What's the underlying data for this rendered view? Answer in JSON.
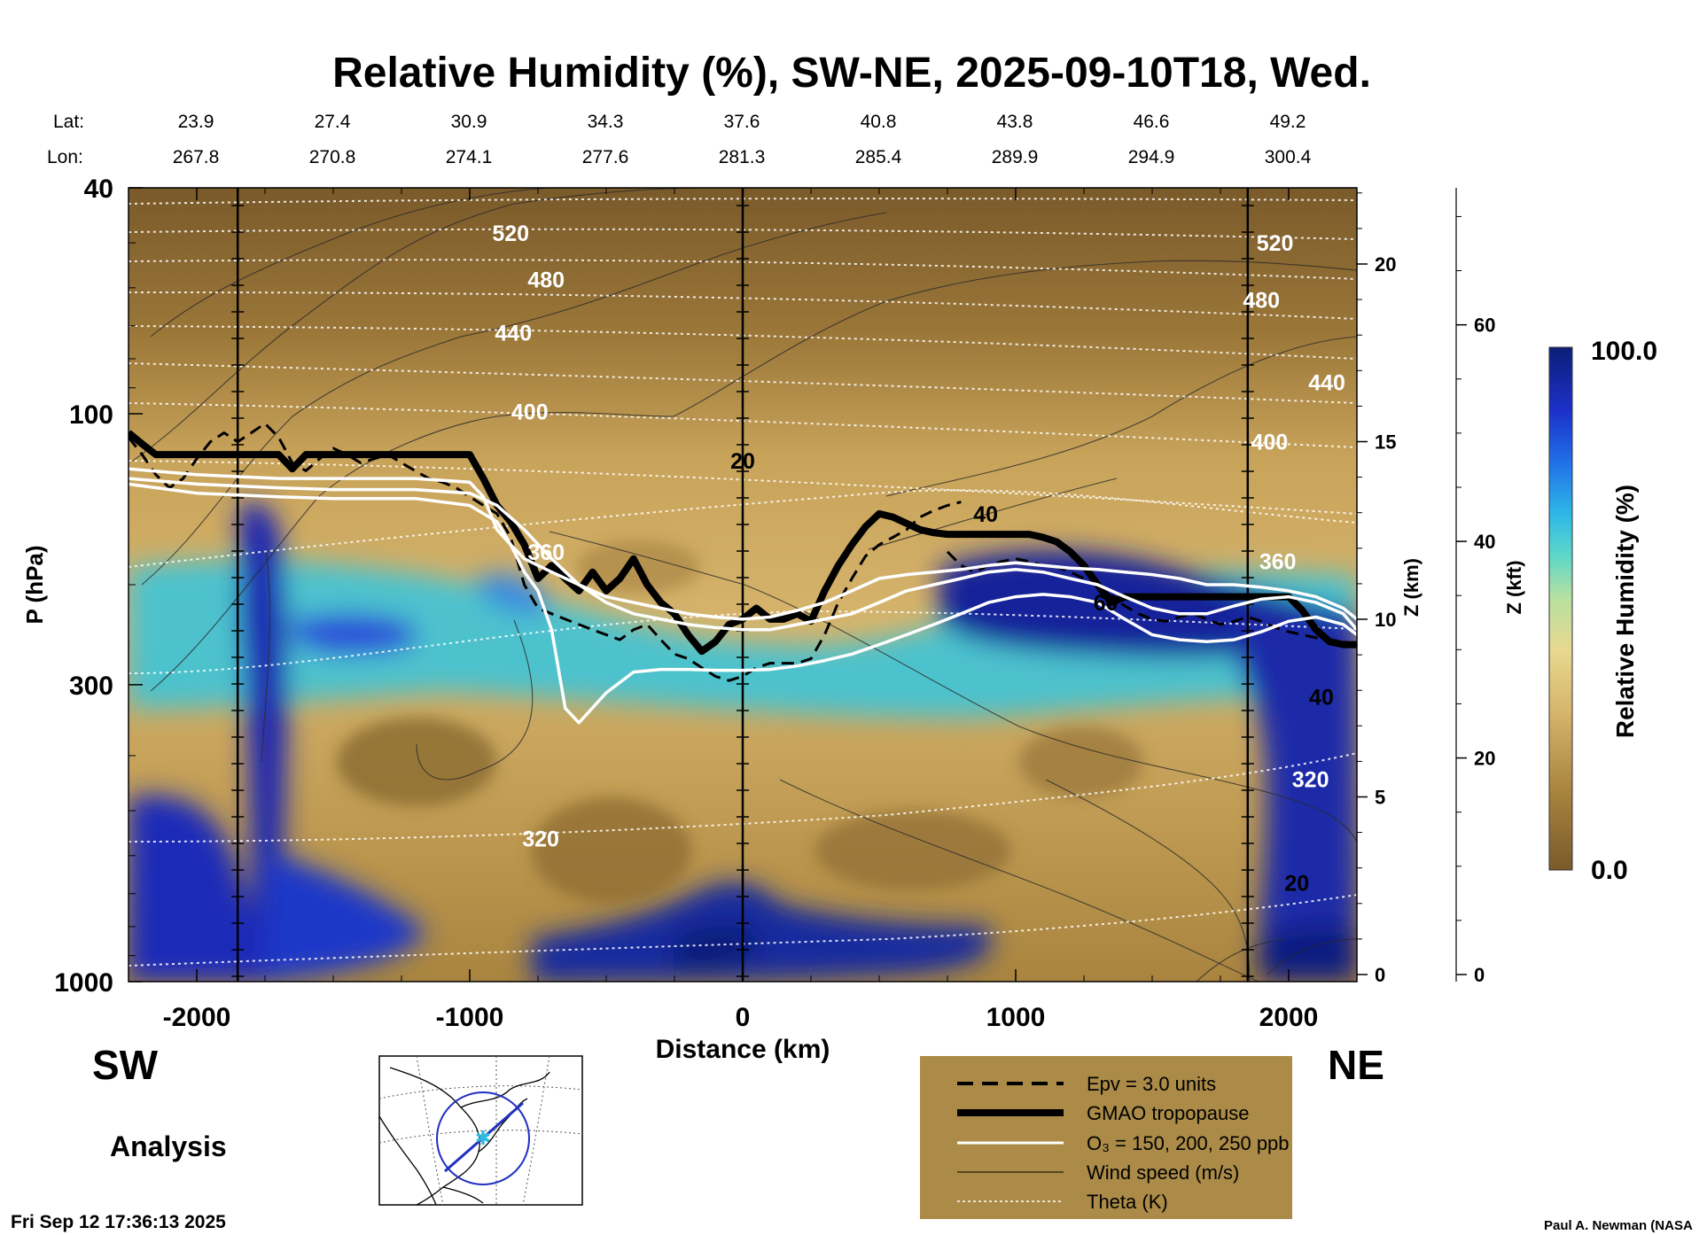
{
  "chart_data": {
    "type": "heatmap",
    "title": "Relative Humidity (%), SW-NE, 2025-09-10T18, Wed.",
    "xlabel": "Distance (km)",
    "ylabel": "P (hPa)",
    "xlim": [
      -2250,
      2250
    ],
    "ylim_hpa": [
      1000,
      40
    ],
    "x_ticks": [
      "-2000",
      "-1000",
      "0",
      "1000",
      "2000"
    ],
    "x_tick_values": [
      -2000,
      -1000,
      0,
      1000,
      2000
    ],
    "y_ticks": [
      "40",
      "100",
      "300",
      "1000"
    ],
    "y_tick_values": [
      40,
      100,
      300,
      1000
    ],
    "z_km_label": "Z (km)",
    "z_km_ticks": [
      "0",
      "5",
      "10",
      "15",
      "20"
    ],
    "z_km_values": [
      0,
      5,
      10,
      15,
      20
    ],
    "z_kft_label": "Z (kft)",
    "z_kft_ticks": [
      "0",
      "20",
      "40",
      "60"
    ],
    "z_kft_values": [
      0,
      20,
      40,
      60
    ],
    "lat_label": "Lat:",
    "lon_label": "Lon:",
    "lat_values": [
      "23.9",
      "27.4",
      "30.9",
      "34.3",
      "37.6",
      "40.8",
      "43.8",
      "46.6",
      "49.2"
    ],
    "lon_values": [
      "267.8",
      "270.8",
      "274.1",
      "277.6",
      "281.3",
      "285.4",
      "289.9",
      "294.9",
      "300.4"
    ],
    "lat_lon_distance_km": [
      -2000,
      -1500,
      -1000,
      -500,
      0,
      500,
      1000,
      1500,
      2000
    ],
    "vertical_line_distances_km": [
      -1850,
      0,
      1850
    ],
    "colorbar": {
      "label": "Relative Humidity (%)",
      "min_label": "0.0",
      "max_label": "100.0",
      "min": 0,
      "max": 100
    },
    "theta_labels": [
      {
        "text": "520",
        "x_km": -850,
        "p_hpa": 48
      },
      {
        "text": "480",
        "x_km": -720,
        "p_hpa": 58
      },
      {
        "text": "440",
        "x_km": -840,
        "p_hpa": 72
      },
      {
        "text": "400",
        "x_km": -780,
        "p_hpa": 99
      },
      {
        "text": "360",
        "x_km": -720,
        "p_hpa": 175
      },
      {
        "text": "320",
        "x_km": -740,
        "p_hpa": 560
      },
      {
        "text": "520",
        "x_km": 1950,
        "p_hpa": 50
      },
      {
        "text": "480",
        "x_km": 1900,
        "p_hpa": 63
      },
      {
        "text": "440",
        "x_km": 2140,
        "p_hpa": 88
      },
      {
        "text": "400",
        "x_km": 1930,
        "p_hpa": 112
      },
      {
        "text": "360",
        "x_km": 1960,
        "p_hpa": 182
      },
      {
        "text": "320",
        "x_km": 2080,
        "p_hpa": 440
      }
    ],
    "wind_labels": [
      {
        "text": "20",
        "x_km": 0,
        "p_hpa": 121
      },
      {
        "text": "40",
        "x_km": 890,
        "p_hpa": 150
      },
      {
        "text": "60",
        "x_km": 1330,
        "p_hpa": 215
      },
      {
        "text": "40",
        "x_km": 2120,
        "p_hpa": 315
      },
      {
        "text": "20",
        "x_km": 2030,
        "p_hpa": 670
      }
    ],
    "series": [
      {
        "name": "GMAO tropopause",
        "x_km": [
          -2250,
          -2200,
          -2150,
          -2100,
          -2000,
          -1900,
          -1800,
          -1700,
          -1650,
          -1600,
          -1500,
          -1400,
          -1300,
          -1200,
          -1100,
          -1000,
          -950,
          -900,
          -850,
          -800,
          -750,
          -700,
          -650,
          -600,
          -550,
          -500,
          -450,
          -400,
          -350,
          -300,
          -250,
          -200,
          -150,
          -100,
          -50,
          0,
          50,
          100,
          150,
          200,
          250,
          300,
          350,
          400,
          450,
          500,
          550,
          600,
          650,
          700,
          750,
          800,
          850,
          900,
          950,
          1000,
          1050,
          1100,
          1150,
          1200,
          1250,
          1300,
          1350,
          1400,
          1500,
          1600,
          1700,
          1800,
          1900,
          2000,
          2050,
          2100,
          2150,
          2200,
          2250
        ],
        "p_hpa": [
          108,
          113,
          118,
          118,
          118,
          118,
          118,
          118,
          125,
          118,
          118,
          118,
          118,
          118,
          118,
          118,
          130,
          145,
          155,
          170,
          195,
          185,
          195,
          205,
          190,
          205,
          195,
          180,
          200,
          215,
          225,
          245,
          262,
          252,
          235,
          230,
          220,
          230,
          230,
          225,
          232,
          205,
          185,
          170,
          158,
          150,
          152,
          156,
          160,
          162,
          163,
          163,
          163,
          163,
          163,
          163,
          163,
          165,
          168,
          175,
          185,
          200,
          215,
          210,
          210,
          210,
          210,
          210,
          210,
          210,
          222,
          240,
          252,
          255,
          255
        ]
      },
      {
        "name": "Epv = 3.0 units",
        "x_km": [
          -2250,
          -2200,
          -2150,
          -2100,
          -2050,
          -2000,
          -1950,
          -1900,
          -1850,
          -1800,
          -1750,
          -1700,
          -1650,
          -1600,
          -1550,
          -1500,
          -1450,
          -1400,
          -1350,
          -1300,
          -1250,
          -1200,
          -1150,
          -1100,
          -1050,
          -1000,
          -950,
          -900,
          -850,
          -800,
          -750,
          -700,
          -650,
          -600,
          -550,
          -500,
          -450,
          -400,
          -350,
          -300,
          -250,
          -200,
          -150,
          -100,
          -50,
          0,
          50,
          100,
          150,
          200,
          250,
          300,
          350,
          400,
          450,
          500,
          550,
          600,
          650,
          700,
          750,
          800
        ],
        "p_hpa": [
          110,
          118,
          128,
          135,
          130,
          120,
          112,
          108,
          112,
          108,
          104,
          110,
          122,
          126,
          120,
          115,
          118,
          122,
          120,
          118,
          122,
          126,
          130,
          132,
          135,
          140,
          145,
          150,
          165,
          200,
          220,
          225,
          230,
          235,
          240,
          245,
          250,
          240,
          235,
          250,
          265,
          270,
          280,
          290,
          295,
          290,
          280,
          275,
          275,
          275,
          270,
          245,
          215,
          195,
          178,
          170,
          165,
          160,
          152,
          148,
          145,
          143
        ]
      },
      {
        "name": "Epv = 3.0 units",
        "x_km": [
          750,
          800,
          850,
          900,
          950,
          1000,
          1050,
          1100,
          1150,
          1200,
          1250,
          1300,
          1350,
          1400,
          1450,
          1500,
          1550,
          1600,
          1650,
          1700,
          1750,
          1800,
          1850,
          1900,
          1950,
          2000,
          2050,
          2100,
          2150,
          2200,
          2250
        ],
        "p_hpa": [
          175,
          185,
          190,
          185,
          182,
          180,
          182,
          185,
          186,
          190,
          195,
          200,
          210,
          218,
          225,
          230,
          232,
          228,
          225,
          230,
          235,
          232,
          228,
          232,
          238,
          242,
          245,
          248,
          250,
          252,
          255
        ]
      },
      {
        "name": "O3 = 150, 200, 250 ppb",
        "x_km": [
          -2250,
          -2000,
          -1700,
          -1500,
          -1200,
          -1000,
          -950,
          -900,
          -850,
          -800,
          -700,
          -600,
          -500,
          -400,
          -300,
          -200,
          -100,
          0,
          100,
          200,
          300,
          400,
          500,
          600,
          700,
          800,
          900,
          1000,
          1100,
          1200,
          1300,
          1400,
          1500,
          1600,
          1700,
          1800,
          1900,
          2000,
          2100,
          2200,
          2250
        ],
        "p_hpa": [
          125,
          128,
          130,
          130,
          130,
          132,
          140,
          160,
          170,
          180,
          190,
          200,
          210,
          215,
          220,
          225,
          228,
          230,
          228,
          222,
          215,
          205,
          195,
          192,
          190,
          188,
          185,
          183,
          185,
          187,
          188,
          190,
          192,
          195,
          200,
          200,
          202,
          205,
          210,
          220,
          230
        ]
      },
      {
        "name": "O3 = 150, 200, 250 ppb",
        "x_km": [
          -2250,
          -2000,
          -1700,
          -1500,
          -1200,
          -1000,
          -900,
          -800,
          -700,
          -600,
          -500,
          -400,
          -300,
          -200,
          -100,
          0,
          100,
          200,
          300,
          400,
          500,
          600,
          700,
          800,
          900,
          1000,
          1100,
          1200,
          1300,
          1400,
          1500,
          1600,
          1700,
          1800,
          1900,
          2000,
          2100,
          2200,
          2250
        ],
        "p_hpa": [
          130,
          133,
          135,
          136,
          136,
          138,
          145,
          160,
          180,
          200,
          215,
          225,
          230,
          235,
          238,
          240,
          240,
          235,
          230,
          225,
          215,
          205,
          200,
          195,
          190,
          188,
          190,
          195,
          200,
          210,
          220,
          225,
          225,
          218,
          212,
          210,
          215,
          225,
          240
        ]
      },
      {
        "name": "O3 = 150, 200, 250 ppb",
        "x_km": [
          -2250,
          -2000,
          -1700,
          -1500,
          -1200,
          -1000,
          -900,
          -850,
          -800,
          -750,
          -700,
          -650,
          -600,
          -500,
          -400,
          -300,
          -200,
          -100,
          0,
          100,
          200,
          300,
          400,
          500,
          600,
          700,
          800,
          900,
          1000,
          1100,
          1200,
          1300,
          1400,
          1500,
          1600,
          1700,
          1800,
          1900,
          2000,
          2100,
          2200,
          2250
        ],
        "p_hpa": [
          133,
          138,
          140,
          141,
          141,
          145,
          155,
          170,
          190,
          205,
          240,
          330,
          350,
          310,
          285,
          282,
          282,
          283,
          283,
          282,
          278,
          272,
          265,
          255,
          245,
          235,
          225,
          215,
          210,
          208,
          210,
          215,
          230,
          245,
          250,
          252,
          250,
          242,
          232,
          228,
          235,
          245
        ]
      }
    ]
  },
  "legend": {
    "items": [
      "Epv = 3.0 units",
      "GMAO tropopause",
      "O₃ = 150, 200, 250 ppb",
      "Wind speed (m/s)",
      "Theta (K)"
    ],
    "bg": "#ab8b47"
  },
  "labels": {
    "sw": "SW",
    "ne": "NE",
    "analysis": "Analysis",
    "timestamp": "Fri Sep 12 17:36:13 2025",
    "credit": "Paul A. Newman (NASA"
  }
}
